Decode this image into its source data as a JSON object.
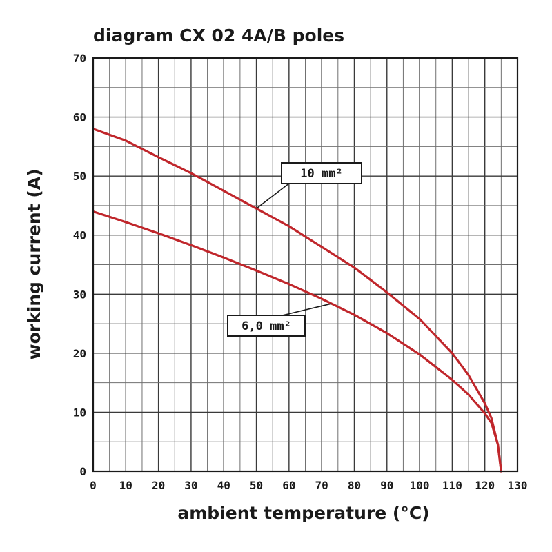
{
  "chart_data": {
    "type": "line",
    "title": "diagram CX 02 4A/B poles",
    "xlabel": "ambient temperature (°C)",
    "ylabel": "working current (A)",
    "xlim": [
      0,
      130
    ],
    "ylim": [
      0,
      70
    ],
    "x_ticks": [
      0,
      10,
      20,
      30,
      40,
      50,
      60,
      70,
      80,
      90,
      100,
      110,
      120,
      130
    ],
    "y_ticks": [
      0,
      10,
      20,
      30,
      40,
      50,
      60,
      70
    ],
    "grid": true,
    "series": [
      {
        "name": "10 mm²",
        "color": "#c0262b",
        "x": [
          0,
          10,
          20,
          30,
          40,
          50,
          60,
          70,
          80,
          90,
          100,
          110,
          115,
          120,
          122,
          124,
          125
        ],
        "y": [
          58,
          56,
          53.2,
          50.5,
          47.5,
          44.5,
          41.5,
          38,
          34.5,
          30.3,
          25.8,
          20,
          16.3,
          11.5,
          9,
          4.5,
          0
        ]
      },
      {
        "name": "6,0 mm²",
        "color": "#c0262b",
        "x": [
          0,
          10,
          20,
          30,
          40,
          50,
          60,
          70,
          80,
          90,
          100,
          110,
          115,
          120,
          122,
          124,
          125
        ],
        "y": [
          44,
          42.2,
          40.3,
          38.3,
          36.2,
          34,
          31.7,
          29.2,
          26.5,
          23.4,
          19.8,
          15.5,
          13,
          9.8,
          8.2,
          4.5,
          0
        ]
      }
    ],
    "annotations": [
      {
        "label": "10 mm²",
        "series": 0,
        "anchor_x": 50
      },
      {
        "label": "6,0 mm²",
        "series": 1,
        "anchor_x": 73
      }
    ]
  }
}
